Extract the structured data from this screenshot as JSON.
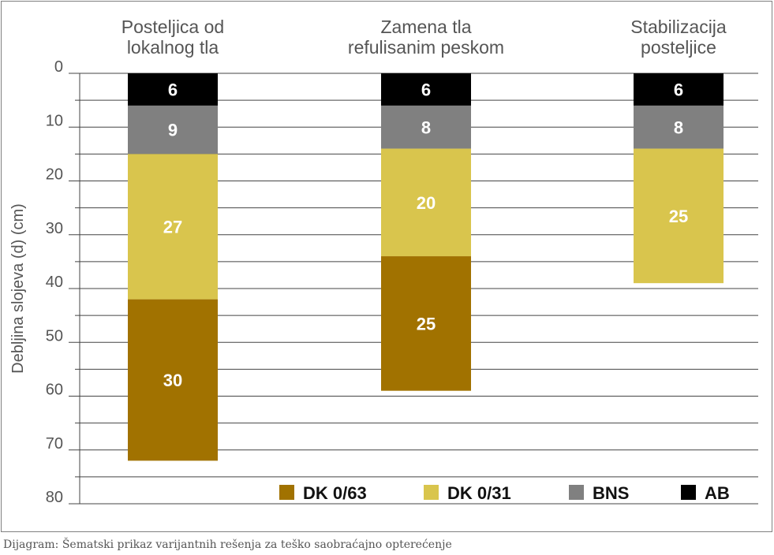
{
  "caption": "Dijagram: Šematski prikaz varijantnih rešenja za teško saobraćajno opterećenje",
  "chart_data": {
    "type": "bar",
    "stacked": true,
    "orientation": "vertical-downward",
    "categories": [
      [
        "Posteljica od",
        "lokalnog tla"
      ],
      [
        "Zamena tla",
        "refulisanim peskom"
      ],
      [
        "Stabilizacija",
        "posteljice"
      ]
    ],
    "ylabel": "Debljina slojeva (d) (cm)",
    "ylim": [
      0,
      80
    ],
    "y_ticks": [
      0,
      10,
      20,
      30,
      40,
      50,
      60,
      70,
      80
    ],
    "grid": true,
    "legend_position": "bottom-right",
    "series": [
      {
        "name": "AB",
        "color": "#000000",
        "values": [
          6,
          6,
          6
        ]
      },
      {
        "name": "BNS",
        "color": "#808080",
        "values": [
          9,
          8,
          8
        ]
      },
      {
        "name": "DK 0/31",
        "color": "#d9c54d",
        "values": [
          27,
          20,
          25
        ]
      },
      {
        "name": "DK 0/63",
        "color": "#a17200",
        "values": [
          30,
          25,
          null
        ]
      }
    ],
    "legend_order": [
      "DK 0/63",
      "DK 0/31",
      "BNS",
      "AB"
    ]
  }
}
